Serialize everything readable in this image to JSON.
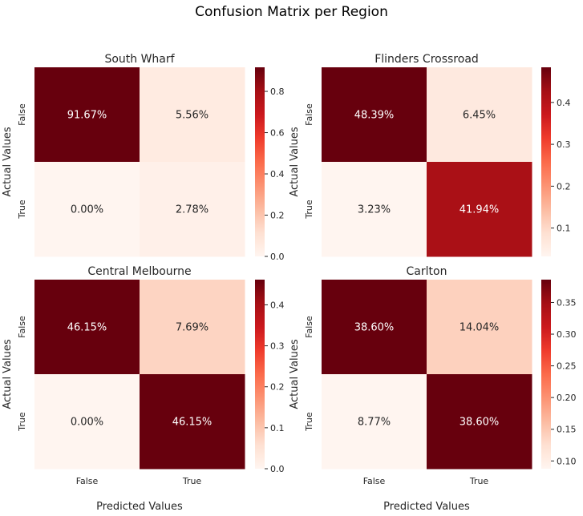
{
  "figure": {
    "suptitle": "Confusion Matrix per Region"
  },
  "chart_data": [
    {
      "type": "heatmap",
      "title": "South Wharf",
      "xlabel": "",
      "ylabel": "Actual Values",
      "x_categories": [
        "False",
        "True"
      ],
      "y_categories": [
        "False",
        "True"
      ],
      "values": [
        [
          0.9167,
          0.0556
        ],
        [
          0.0,
          0.0278
        ]
      ],
      "annotations": [
        [
          "91.67%",
          "5.56%"
        ],
        [
          "0.00%",
          "2.78%"
        ]
      ],
      "colormap": "Reds",
      "colorbar": {
        "range": [
          0.0,
          0.9167
        ],
        "ticks": [
          0.0,
          0.2,
          0.4,
          0.6,
          0.8
        ],
        "tick_labels": [
          "0.0",
          "0.2",
          "0.4",
          "0.6",
          "0.8"
        ]
      },
      "show_xticklabels": false
    },
    {
      "type": "heatmap",
      "title": "Flinders Crossroad",
      "xlabel": "",
      "ylabel": "Actual Values",
      "x_categories": [
        "False",
        "True"
      ],
      "y_categories": [
        "False",
        "True"
      ],
      "values": [
        [
          0.4839,
          0.0645
        ],
        [
          0.0323,
          0.4194
        ]
      ],
      "annotations": [
        [
          "48.39%",
          "6.45%"
        ],
        [
          "3.23%",
          "41.94%"
        ]
      ],
      "colormap": "Reds",
      "colorbar": {
        "range": [
          0.0323,
          0.4839
        ],
        "ticks": [
          0.1,
          0.2,
          0.3,
          0.4
        ],
        "tick_labels": [
          "0.1",
          "0.2",
          "0.3",
          "0.4"
        ]
      },
      "show_xticklabels": false
    },
    {
      "type": "heatmap",
      "title": "Central Melbourne",
      "xlabel": "Predicted Values",
      "ylabel": "Actual Values",
      "x_categories": [
        "False",
        "True"
      ],
      "y_categories": [
        "False",
        "True"
      ],
      "values": [
        [
          0.4615,
          0.0769
        ],
        [
          0.0,
          0.4615
        ]
      ],
      "annotations": [
        [
          "46.15%",
          "7.69%"
        ],
        [
          "0.00%",
          "46.15%"
        ]
      ],
      "colormap": "Reds",
      "colorbar": {
        "range": [
          0.0,
          0.4615
        ],
        "ticks": [
          0.0,
          0.1,
          0.2,
          0.3,
          0.4
        ],
        "tick_labels": [
          "0.0",
          "0.1",
          "0.2",
          "0.3",
          "0.4"
        ]
      },
      "show_xticklabels": true
    },
    {
      "type": "heatmap",
      "title": "Carlton",
      "xlabel": "Predicted Values",
      "ylabel": "Actual Values",
      "x_categories": [
        "False",
        "True"
      ],
      "y_categories": [
        "False",
        "True"
      ],
      "values": [
        [
          0.386,
          0.1404
        ],
        [
          0.0877,
          0.386
        ]
      ],
      "annotations": [
        [
          "38.60%",
          "14.04%"
        ],
        [
          "8.77%",
          "38.60%"
        ]
      ],
      "colormap": "Reds",
      "colorbar": {
        "range": [
          0.0877,
          0.386
        ],
        "ticks": [
          0.1,
          0.15,
          0.2,
          0.25,
          0.3,
          0.35
        ],
        "tick_labels": [
          "0.10",
          "0.15",
          "0.20",
          "0.25",
          "0.30",
          "0.35"
        ]
      },
      "show_xticklabels": true
    }
  ]
}
